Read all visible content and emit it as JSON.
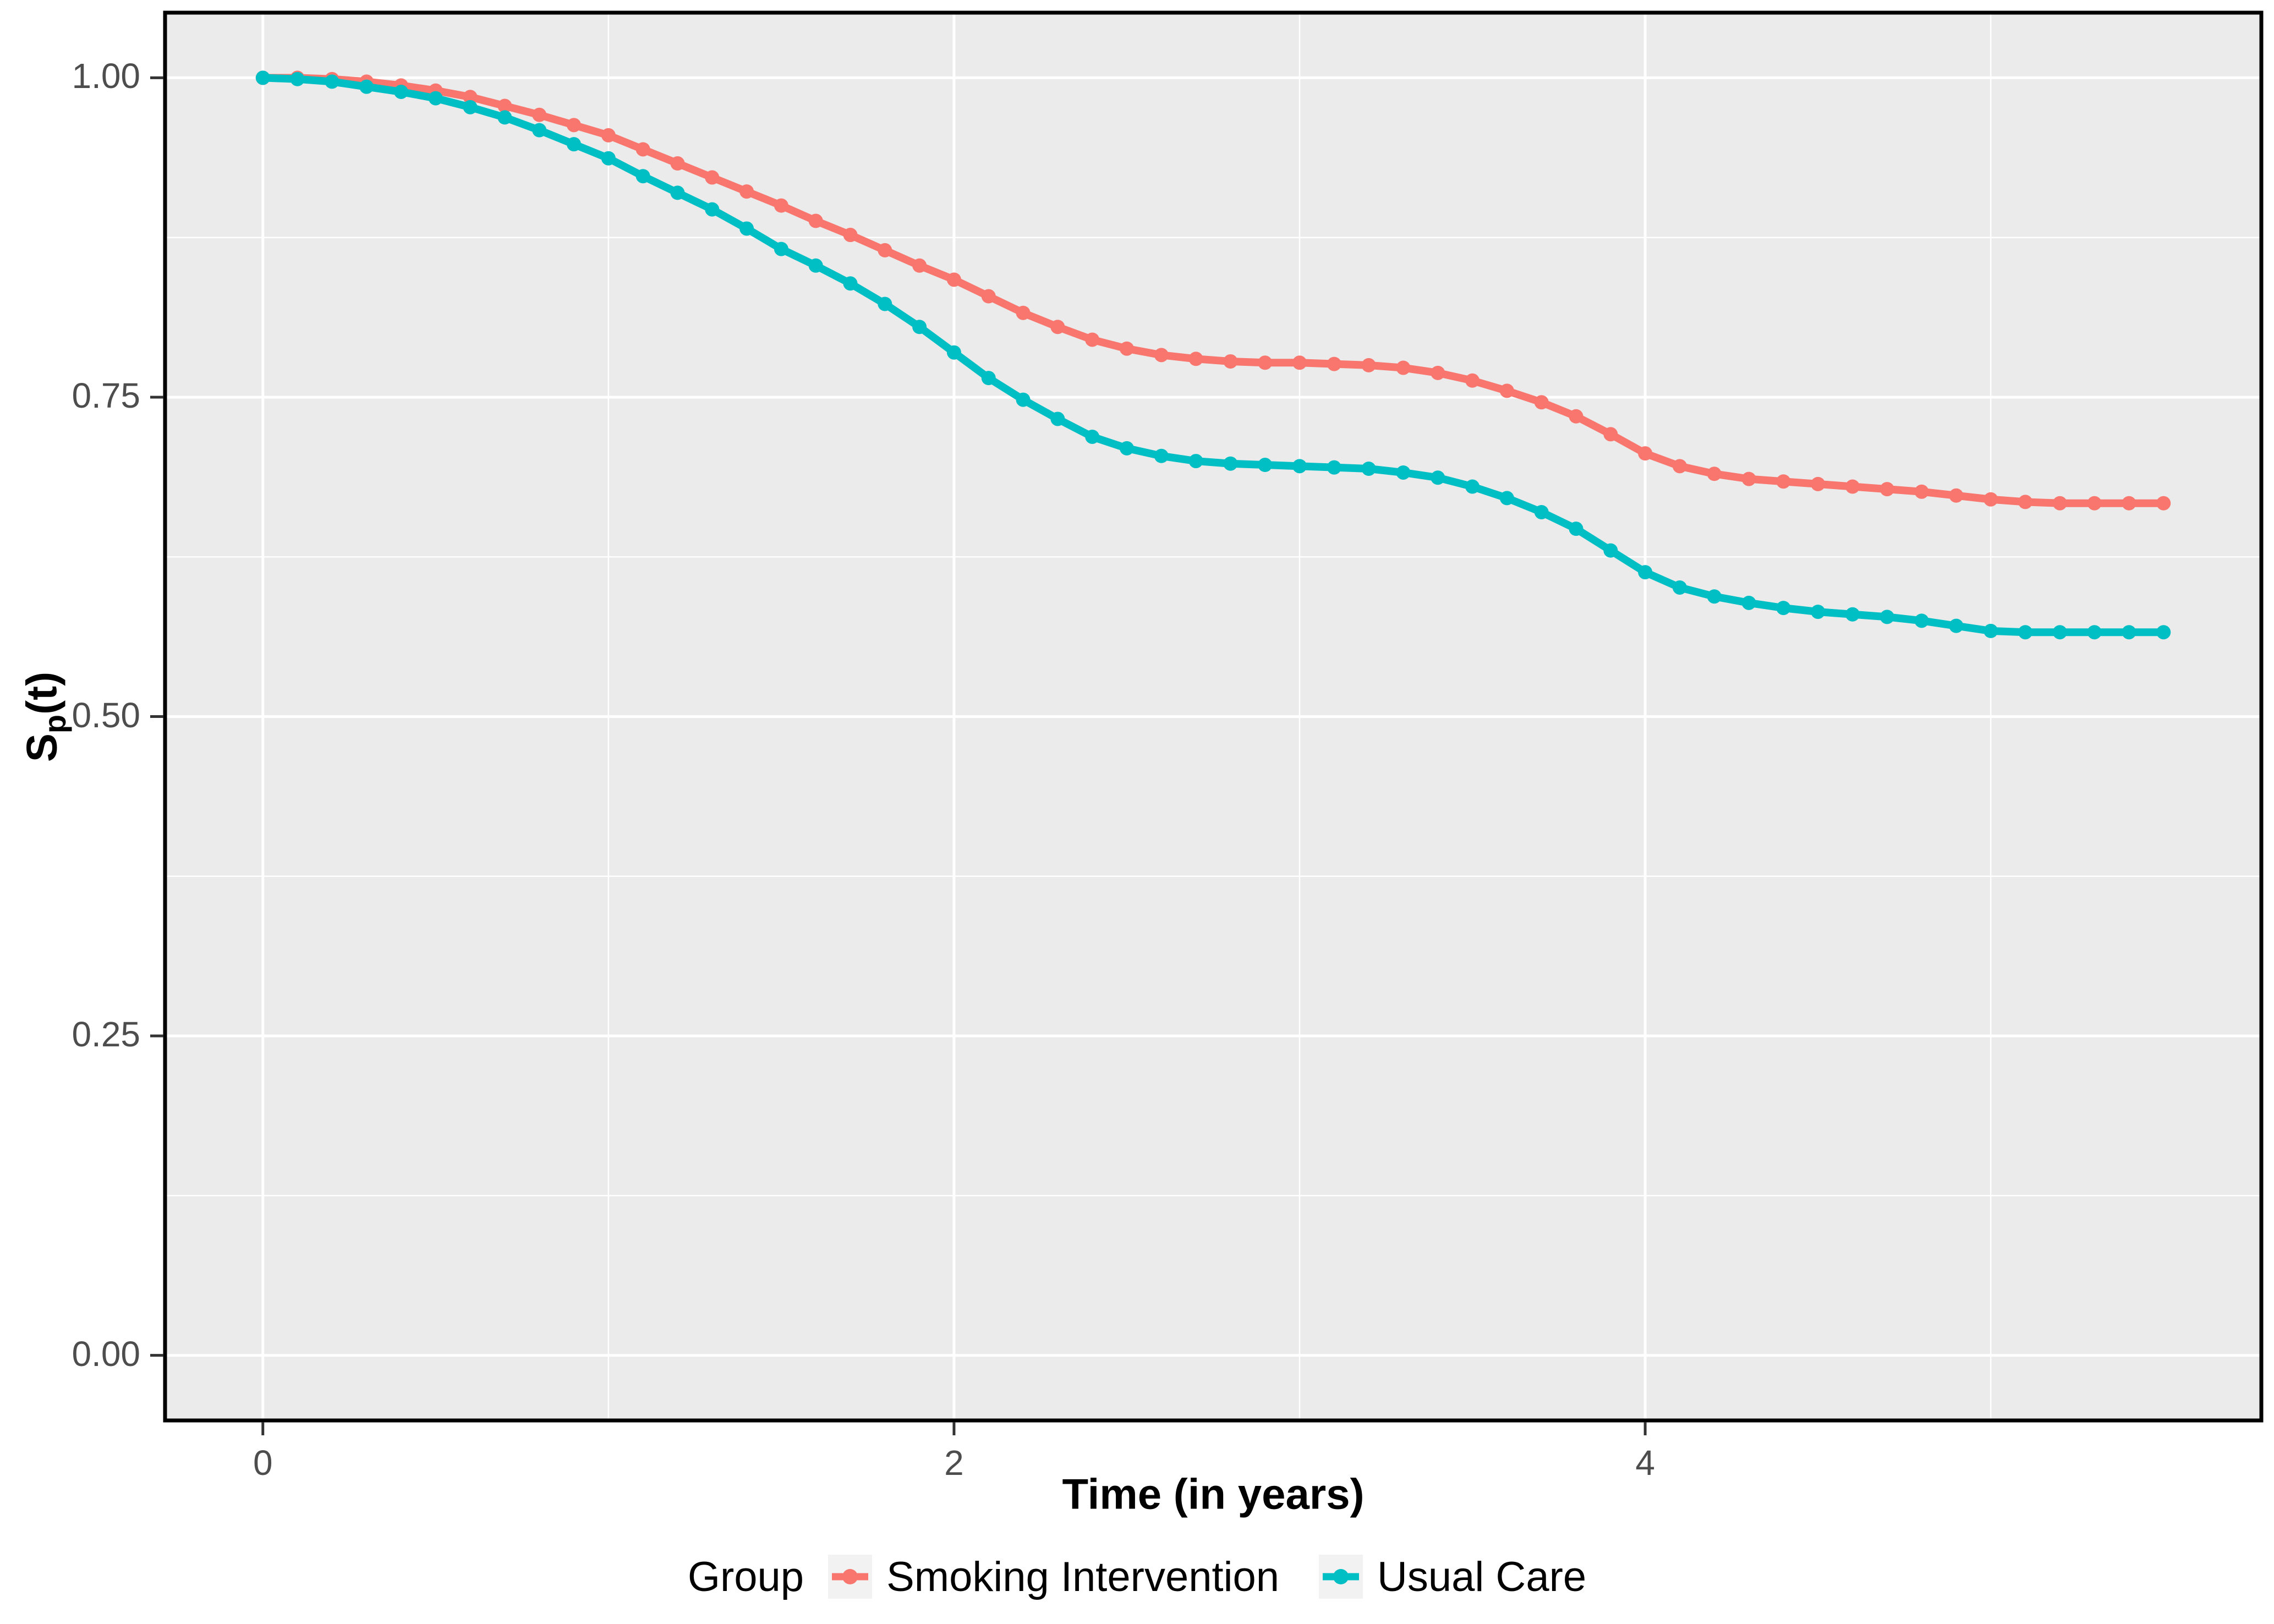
{
  "legend": {
    "title": "Group"
  },
  "colors": {
    "page_background": "#FFFFFF",
    "panel_background": "#EBEBEB",
    "grid_major": "#FFFFFF",
    "grid_minor": "#FFFFFF",
    "panel_border": "#000000",
    "tick_mark": "#333333",
    "tick_label": "#4D4D4D",
    "axis_title": "#000000",
    "legend_key_background": "#F2F2F2"
  },
  "chart_data": {
    "type": "line",
    "title": "",
    "xlabel": "Time (in years)",
    "ylabel": "Sp(t)",
    "ylabel_parts": {
      "main": "S",
      "sub": "p",
      "rest": "(t)"
    },
    "legend_title": "Group",
    "legend_position": "bottom",
    "grid": true,
    "xlim": [
      -0.283,
      5.783
    ],
    "ylim": [
      -0.051,
      1.051
    ],
    "x_ticks": [
      0,
      2,
      4
    ],
    "x_tick_labels": [
      "0",
      "2",
      "4"
    ],
    "y_ticks": [
      0,
      0.25,
      0.5,
      0.75,
      1
    ],
    "y_tick_labels": [
      "0.00",
      "0.25",
      "0.50",
      "0.75",
      "1.00"
    ],
    "x_start": 0,
    "x_step": 0.1,
    "marker": "point",
    "series": [
      {
        "name": "Smoking Intervention",
        "color": "#F8766D",
        "values": [
          1.0,
          1.0,
          0.999,
          0.997,
          0.994,
          0.99,
          0.985,
          0.978,
          0.971,
          0.963,
          0.955,
          0.944,
          0.933,
          0.922,
          0.911,
          0.9,
          0.888,
          0.877,
          0.865,
          0.853,
          0.842,
          0.829,
          0.816,
          0.805,
          0.795,
          0.788,
          0.783,
          0.78,
          0.778,
          0.777,
          0.777,
          0.776,
          0.775,
          0.773,
          0.769,
          0.763,
          0.755,
          0.746,
          0.735,
          0.721,
          0.706,
          0.696,
          0.69,
          0.686,
          0.684,
          0.682,
          0.68,
          0.678,
          0.676,
          0.673,
          0.67,
          0.668,
          0.667,
          0.667,
          0.667,
          0.667
        ]
      },
      {
        "name": "Usual Care",
        "color": "#00BFC4",
        "values": [
          1.0,
          0.999,
          0.997,
          0.993,
          0.989,
          0.984,
          0.977,
          0.969,
          0.959,
          0.948,
          0.937,
          0.923,
          0.91,
          0.897,
          0.882,
          0.866,
          0.853,
          0.839,
          0.823,
          0.805,
          0.785,
          0.765,
          0.748,
          0.733,
          0.719,
          0.71,
          0.704,
          0.7,
          0.698,
          0.697,
          0.696,
          0.695,
          0.694,
          0.691,
          0.687,
          0.68,
          0.671,
          0.66,
          0.647,
          0.63,
          0.613,
          0.601,
          0.594,
          0.589,
          0.585,
          0.582,
          0.58,
          0.578,
          0.575,
          0.571,
          0.567,
          0.566,
          0.566,
          0.566,
          0.566,
          0.566
        ]
      }
    ]
  }
}
